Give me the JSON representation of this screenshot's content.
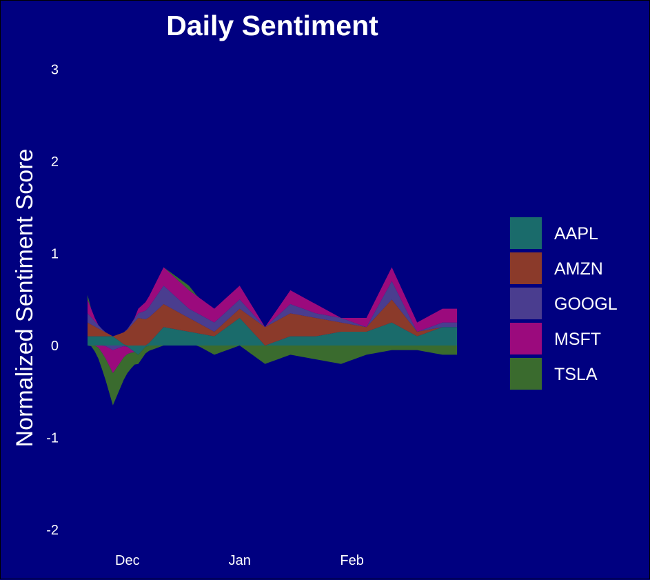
{
  "chart_data": {
    "type": "area",
    "title": "Daily Sentiment",
    "xlabel": "",
    "ylabel": "Normalized Sentiment Score",
    "x_range": [
      "2023-11-20",
      "2024-03-01"
    ],
    "ylim": [
      -2.1,
      3.2
    ],
    "y_ticks": [
      3,
      2,
      1,
      0,
      -1,
      -2
    ],
    "x_ticks": [
      {
        "label": "Dec",
        "date": "2023-12-01"
      },
      {
        "label": "Jan",
        "date": "2024-01-01"
      },
      {
        "label": "Feb",
        "date": "2024-02-01"
      }
    ],
    "stacked": true,
    "grid": false,
    "legend_position": "right",
    "colors": {
      "AAPL": "#1a6b6b",
      "AMZN": "#8b3a2a",
      "GOOGL": "#4a3d8f",
      "MSFT": "#9b0a7d",
      "TSLA": "#3a6b2e"
    },
    "weekly_dates": [
      "2023-11-20",
      "2023-11-27",
      "2023-12-04",
      "2023-12-11",
      "2023-12-18",
      "2023-12-25",
      "2024-01-01",
      "2024-01-08",
      "2024-01-15",
      "2024-01-22",
      "2024-01-29",
      "2024-02-05",
      "2024-02-12",
      "2024-02-19",
      "2024-02-26"
    ],
    "series": [
      {
        "name": "AAPL",
        "weekly_values": [
          0.1,
          0.1,
          -0.1,
          0.2,
          0.15,
          0.1,
          0.3,
          0.0,
          0.1,
          0.1,
          0.15,
          0.15,
          0.25,
          0.1,
          0.2
        ]
      },
      {
        "name": "AMZN",
        "weekly_values": [
          0.15,
          0.0,
          0.3,
          0.25,
          0.15,
          0.05,
          0.1,
          0.2,
          0.25,
          0.2,
          0.1,
          0.05,
          0.25,
          0.05,
          0.0
        ]
      },
      {
        "name": "GOOGL",
        "weekly_values": [
          0.1,
          -0.05,
          0.05,
          0.2,
          0.1,
          0.1,
          0.1,
          0.0,
          0.1,
          0.05,
          0.05,
          0.0,
          0.2,
          0.0,
          0.05
        ]
      },
      {
        "name": "MSFT",
        "weekly_values": [
          0.15,
          -0.25,
          0.05,
          0.2,
          0.2,
          0.15,
          0.15,
          0.0,
          0.15,
          0.1,
          0.0,
          0.1,
          0.15,
          0.1,
          0.15
        ]
      },
      {
        "name": "TSLA",
        "weekly_values": [
          0.05,
          -0.35,
          -0.1,
          0.0,
          0.05,
          -0.1,
          0.0,
          -0.2,
          -0.1,
          -0.15,
          -0.2,
          -0.1,
          -0.05,
          -0.05,
          -0.1
        ]
      }
    ]
  }
}
